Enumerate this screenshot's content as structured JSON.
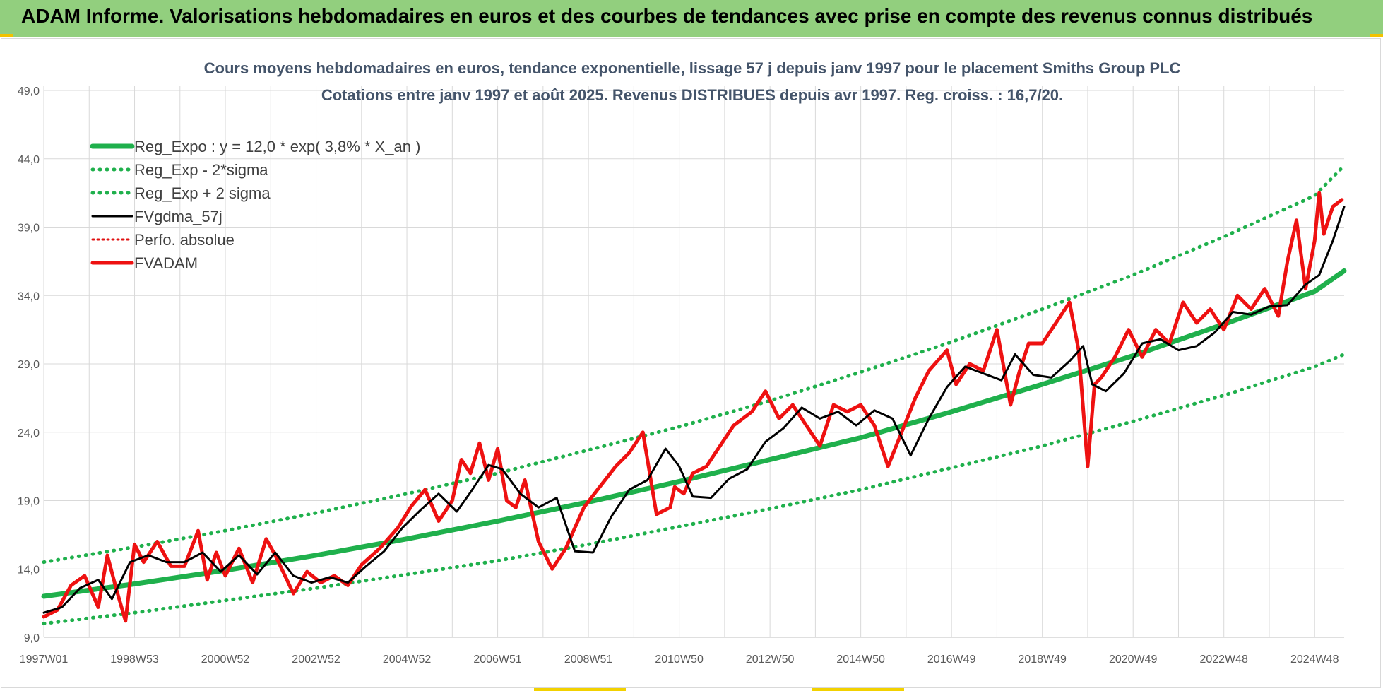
{
  "header": {
    "title": "ADAM Informe. Valorisations hebdomadaires en euros et des courbes de tendances avec prise en compte des revenus connus distribués"
  },
  "colors": {
    "banner": "#92cf7e",
    "reg_expo": "#1fb04c",
    "sigma": "#1fb04c",
    "fvgdma": "#000000",
    "perfo": "#e01010",
    "fvadam": "#ee1111",
    "grid": "#d9d9d9"
  },
  "chart_data": {
    "type": "line",
    "title": "Cours moyens hebdomadaires en euros, tendance exponentielle, lissage 57 j depuis janv 1997 pour le placement Smiths Group PLC",
    "subtitle": "Cotations entre janv 1997 et août 2025.  Revenus DISTRIBUES depuis avr 1997. Reg. croiss. : 16,7/20.",
    "xlabel": "",
    "ylabel": "",
    "ylim": [
      9.0,
      49.0
    ],
    "xlim": [
      1997.0,
      2025.65
    ],
    "y_ticks": [
      "9,0",
      "14,0",
      "19,0",
      "24,0",
      "29,0",
      "34,0",
      "39,0",
      "44,0",
      "49,0"
    ],
    "y_tick_values": [
      9,
      14,
      19,
      24,
      29,
      34,
      39,
      44,
      49
    ],
    "x_ticks": [
      "1997W01",
      "1998W53",
      "2000W52",
      "2002W52",
      "2004W52",
      "2006W51",
      "2008W51",
      "2010W50",
      "2012W50",
      "2014W50",
      "2016W49",
      "2018W49",
      "2020W49",
      "2022W48",
      "2024W48"
    ],
    "x_tick_values": [
      1997.0,
      1999.0,
      2001.0,
      2003.0,
      2005.0,
      2007.0,
      2009.0,
      2011.0,
      2013.0,
      2015.0,
      2017.0,
      2019.0,
      2021.0,
      2023.0,
      2025.0
    ],
    "grid": true,
    "legend_position": "top-left",
    "legend": [
      "Reg_Expo : y = 12,0 * exp( 3,8% *  X_an )",
      "Reg_Exp - 2*sigma",
      "Reg_Exp + 2 sigma",
      "FVgdma_57j",
      "Perfo. absolue",
      "FVADAM"
    ],
    "series": [
      {
        "name": "Reg_Expo : y = 12,0 * exp( 3,8% *  X_an )",
        "style": "solid-thick",
        "x": [
          1997.0,
          1999.0,
          2001.0,
          2003.0,
          2005.0,
          2007.0,
          2009.0,
          2011.0,
          2013.0,
          2015.0,
          2017.0,
          2019.0,
          2021.0,
          2023.0,
          2025.0,
          2025.65
        ],
        "values": [
          12.0,
          12.9,
          13.9,
          15.0,
          16.2,
          17.5,
          18.9,
          20.4,
          22.0,
          23.6,
          25.5,
          27.5,
          29.6,
          31.9,
          34.3,
          35.8
        ]
      },
      {
        "name": "Reg_Exp - 2*sigma",
        "style": "dotted",
        "x": [
          1997.0,
          1999.0,
          2001.0,
          2003.0,
          2005.0,
          2007.0,
          2009.0,
          2011.0,
          2013.0,
          2015.0,
          2017.0,
          2019.0,
          2021.0,
          2023.0,
          2025.0,
          2025.65
        ],
        "values": [
          10.0,
          10.8,
          11.7,
          12.6,
          13.6,
          14.6,
          15.8,
          17.1,
          18.4,
          19.8,
          21.4,
          23.0,
          24.8,
          26.7,
          28.8,
          29.7
        ]
      },
      {
        "name": "Reg_Exp + 2 sigma",
        "style": "dotted",
        "x": [
          1997.0,
          1999.0,
          2001.0,
          2003.0,
          2005.0,
          2007.0,
          2009.0,
          2011.0,
          2013.0,
          2015.0,
          2017.0,
          2019.0,
          2021.0,
          2023.0,
          2025.0,
          2025.65
        ],
        "values": [
          14.5,
          15.6,
          16.8,
          18.1,
          19.5,
          21.0,
          22.7,
          24.4,
          26.3,
          28.4,
          30.6,
          33.0,
          35.5,
          38.3,
          41.3,
          43.5
        ]
      },
      {
        "name": "FVgdma_57j",
        "style": "solid",
        "x": [
          1997.0,
          1997.4,
          1997.8,
          1998.2,
          1998.5,
          1998.9,
          1999.3,
          1999.7,
          2000.1,
          2000.5,
          2000.9,
          2001.3,
          2001.7,
          2002.1,
          2002.5,
          2002.9,
          2003.3,
          2003.7,
          2004.1,
          2004.5,
          2004.9,
          2005.3,
          2005.7,
          2006.1,
          2006.4,
          2006.8,
          2007.1,
          2007.5,
          2007.9,
          2008.3,
          2008.7,
          2009.1,
          2009.5,
          2009.9,
          2010.3,
          2010.7,
          2011.0,
          2011.3,
          2011.7,
          2012.1,
          2012.5,
          2012.9,
          2013.3,
          2013.7,
          2014.1,
          2014.5,
          2014.9,
          2015.3,
          2015.7,
          2016.1,
          2016.5,
          2016.9,
          2017.3,
          2017.7,
          2018.1,
          2018.4,
          2018.8,
          2019.2,
          2019.6,
          2019.9,
          2020.1,
          2020.4,
          2020.8,
          2021.2,
          2021.6,
          2022.0,
          2022.4,
          2022.8,
          2023.2,
          2023.6,
          2024.0,
          2024.4,
          2024.8,
          2025.1,
          2025.4,
          2025.65
        ],
        "values": [
          10.8,
          11.2,
          12.6,
          13.2,
          11.8,
          14.5,
          15.0,
          14.5,
          14.5,
          15.2,
          13.8,
          15.0,
          13.6,
          15.2,
          13.5,
          13.0,
          13.4,
          13.0,
          14.2,
          15.3,
          17.0,
          18.3,
          19.5,
          18.2,
          19.6,
          21.6,
          21.3,
          19.5,
          18.5,
          19.2,
          15.3,
          15.2,
          17.8,
          19.8,
          20.5,
          22.8,
          21.5,
          19.3,
          19.2,
          20.6,
          21.3,
          23.3,
          24.3,
          25.8,
          25.0,
          25.5,
          24.5,
          25.6,
          25.0,
          22.3,
          25.0,
          27.3,
          28.8,
          28.3,
          27.8,
          29.7,
          28.2,
          28.0,
          29.2,
          30.3,
          27.5,
          27.0,
          28.3,
          30.5,
          30.8,
          30.0,
          30.3,
          31.3,
          32.8,
          32.6,
          33.2,
          33.3,
          34.8,
          35.5,
          38.0,
          40.5
        ]
      },
      {
        "name": "Perfo. absolue",
        "style": "dotted",
        "x": [],
        "values": []
      },
      {
        "name": "FVADAM",
        "style": "solid-thick",
        "x": [
          1997.0,
          1997.3,
          1997.6,
          1997.9,
          1998.2,
          1998.4,
          1998.6,
          1998.8,
          1999.0,
          1999.2,
          1999.5,
          1999.8,
          2000.1,
          2000.4,
          2000.6,
          2000.8,
          2001.0,
          2001.3,
          2001.6,
          2001.9,
          2002.1,
          2002.5,
          2002.8,
          2003.1,
          2003.4,
          2003.7,
          2004.0,
          2004.4,
          2004.8,
          2005.1,
          2005.4,
          2005.7,
          2006.0,
          2006.2,
          2006.4,
          2006.6,
          2006.8,
          2007.0,
          2007.2,
          2007.4,
          2007.6,
          2007.9,
          2008.2,
          2008.5,
          2008.7,
          2008.9,
          2009.2,
          2009.6,
          2009.9,
          2010.2,
          2010.5,
          2010.8,
          2010.9,
          2011.1,
          2011.3,
          2011.6,
          2011.9,
          2012.2,
          2012.6,
          2012.9,
          2013.2,
          2013.5,
          2013.8,
          2014.1,
          2014.4,
          2014.7,
          2015.0,
          2015.3,
          2015.6,
          2015.9,
          2016.2,
          2016.5,
          2016.9,
          2017.1,
          2017.4,
          2017.7,
          2018.0,
          2018.3,
          2018.5,
          2018.7,
          2019.0,
          2019.3,
          2019.6,
          2019.8,
          2020.0,
          2020.1,
          2020.15,
          2020.3,
          2020.6,
          2020.9,
          2021.2,
          2021.5,
          2021.8,
          2022.1,
          2022.4,
          2022.7,
          2023.0,
          2023.3,
          2023.6,
          2023.9,
          2024.2,
          2024.4,
          2024.6,
          2024.8,
          2025.0,
          2025.1,
          2025.2,
          2025.4,
          2025.6
        ],
        "values": [
          10.5,
          11.0,
          12.8,
          13.5,
          11.2,
          15.0,
          12.5,
          10.2,
          15.8,
          14.5,
          16.0,
          14.2,
          14.2,
          16.8,
          13.2,
          15.2,
          13.5,
          15.5,
          13.0,
          16.2,
          15.0,
          12.2,
          13.8,
          13.0,
          13.5,
          12.8,
          14.3,
          15.5,
          17.0,
          18.6,
          19.8,
          17.5,
          19.0,
          22.0,
          21.0,
          23.2,
          20.5,
          22.8,
          19.0,
          18.5,
          20.5,
          16.0,
          14.0,
          15.5,
          17.0,
          18.5,
          19.8,
          21.5,
          22.5,
          24.0,
          18.0,
          18.5,
          20.0,
          19.5,
          21.0,
          21.5,
          23.0,
          24.5,
          25.5,
          27.0,
          25.0,
          26.0,
          24.5,
          23.0,
          26.0,
          25.5,
          26.0,
          24.5,
          21.5,
          24.0,
          26.5,
          28.5,
          30.0,
          27.5,
          29.0,
          28.5,
          31.5,
          26.0,
          28.5,
          30.5,
          30.5,
          32.0,
          33.5,
          30.0,
          21.5,
          25.5,
          27.5,
          28.0,
          29.5,
          31.5,
          29.5,
          31.5,
          30.5,
          33.5,
          32.0,
          33.0,
          31.5,
          34.0,
          33.0,
          34.5,
          32.5,
          36.5,
          39.5,
          34.5,
          38.0,
          41.5,
          38.5,
          40.5,
          41.0
        ]
      }
    ]
  }
}
